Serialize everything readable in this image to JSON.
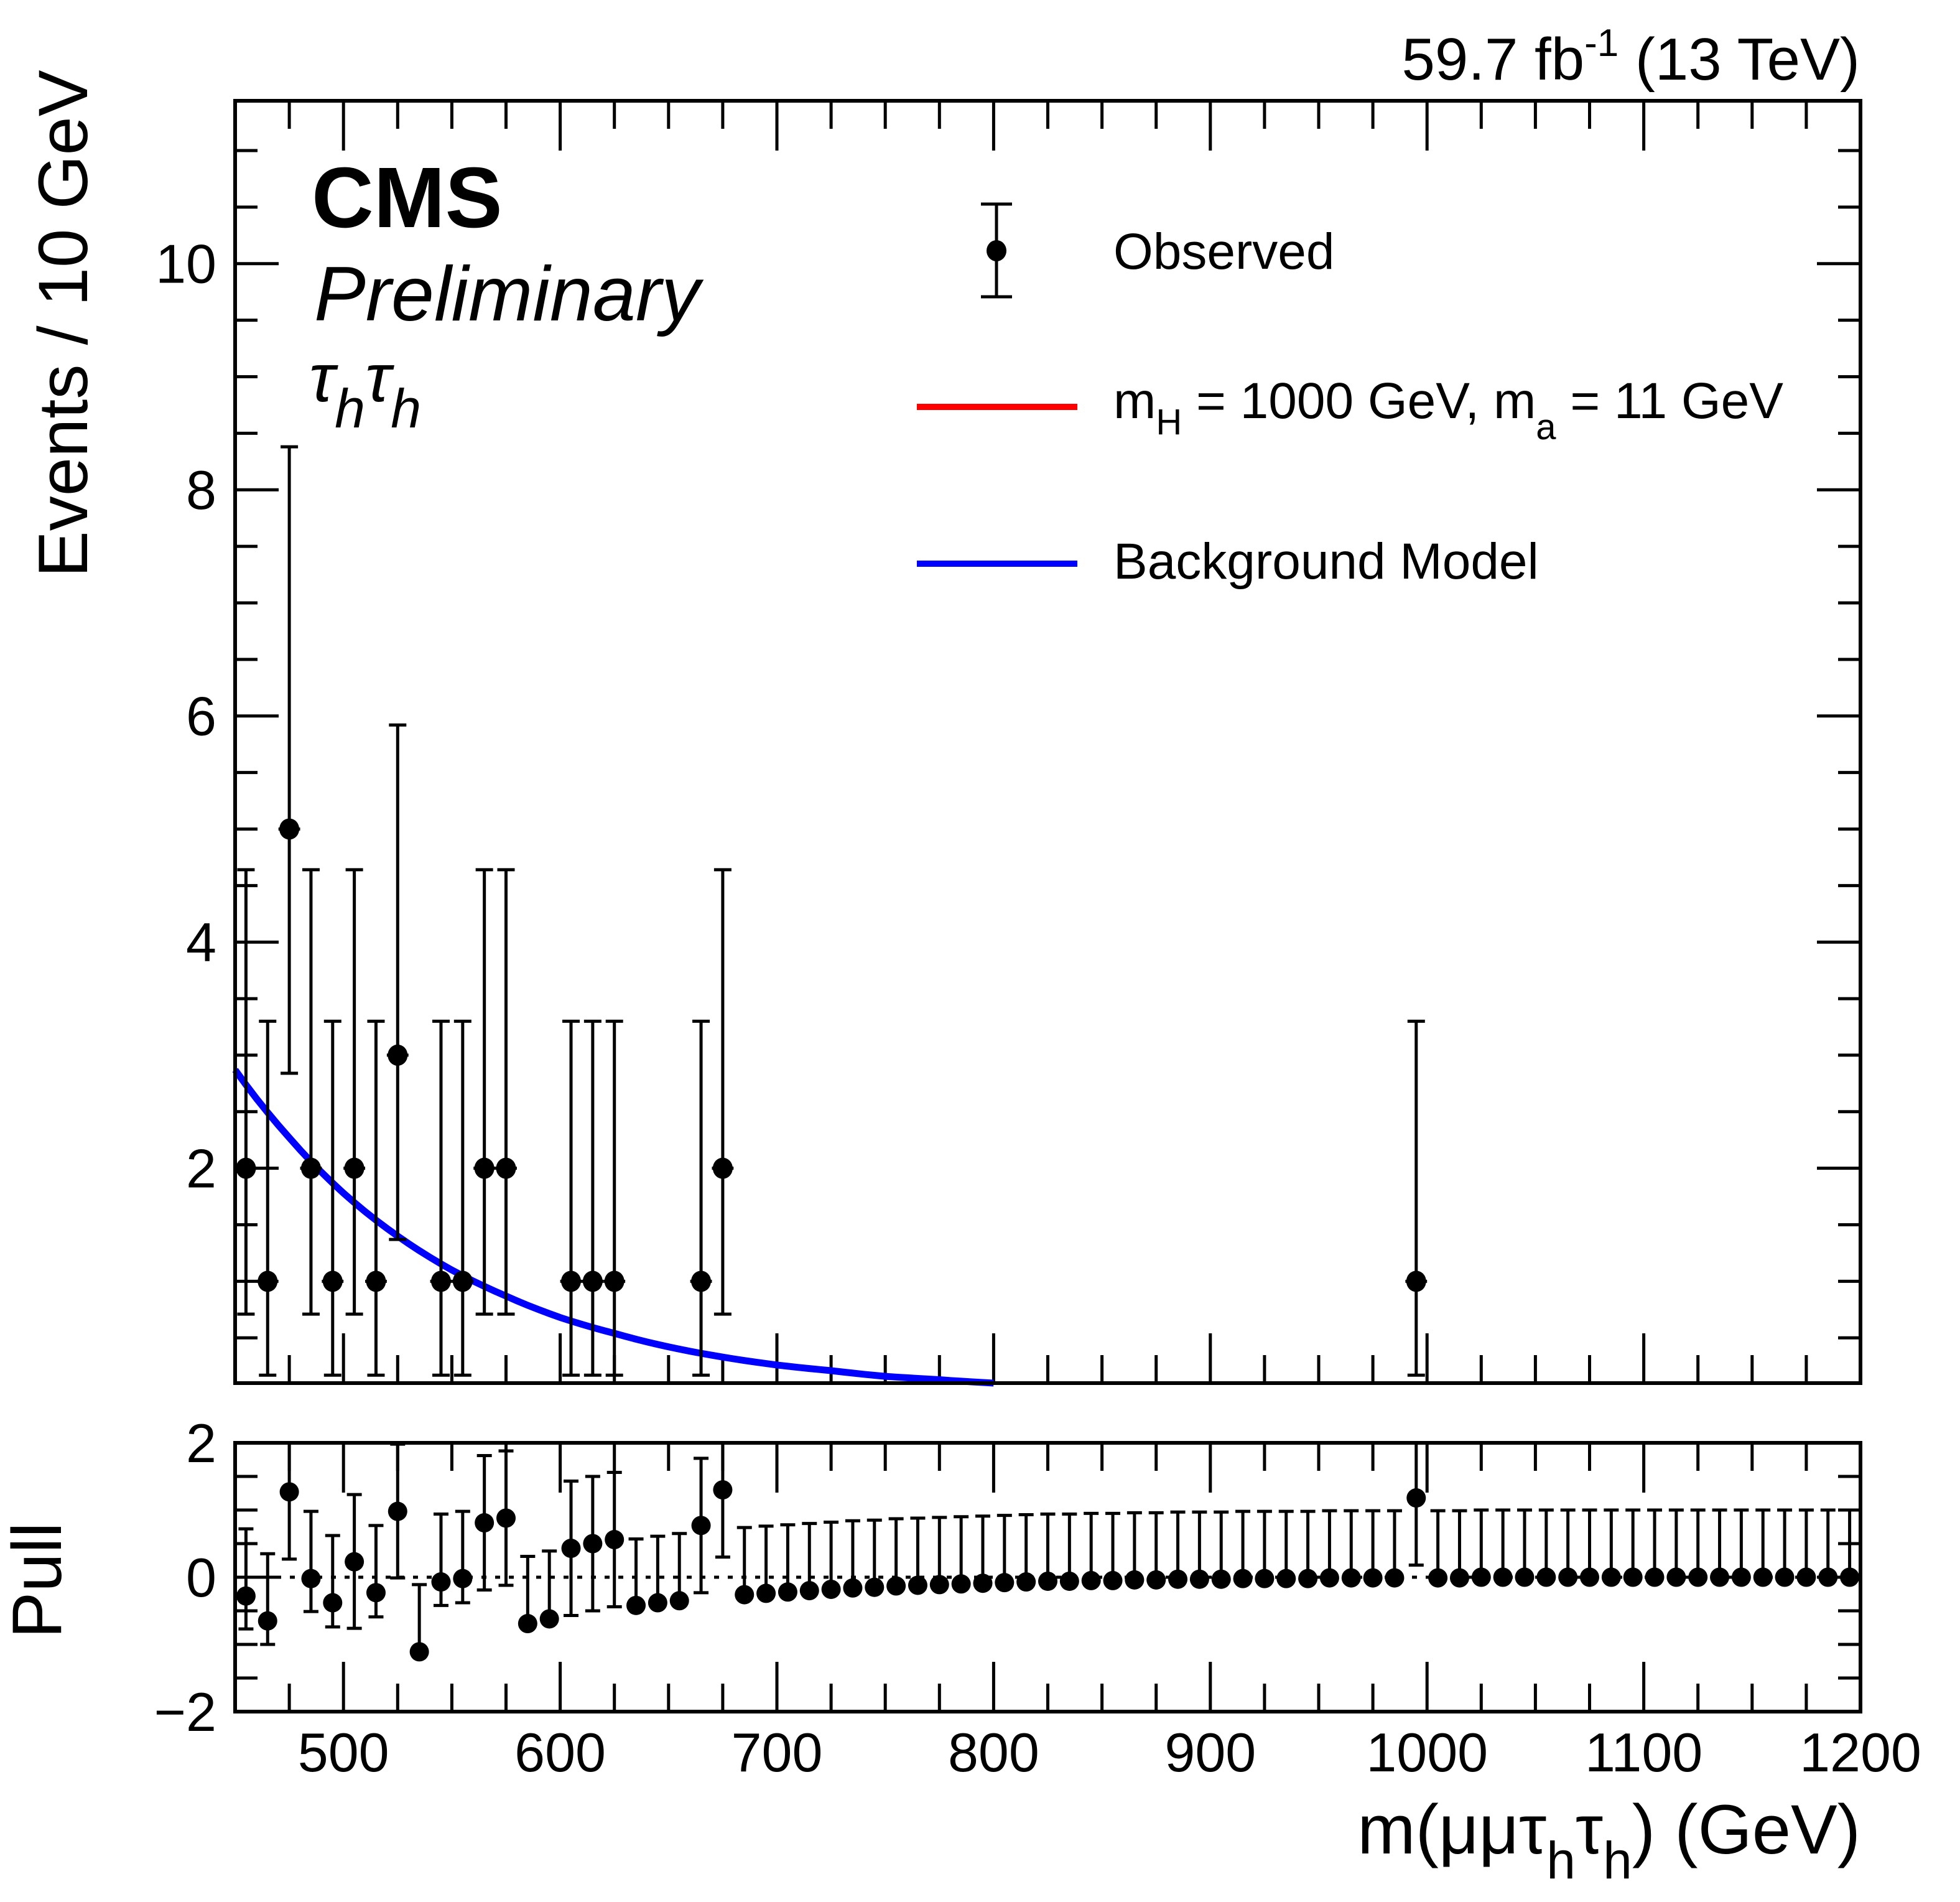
{
  "chart_data": [
    {
      "panel": "main",
      "type": "scatter",
      "title": "",
      "header_left": {
        "experiment": "CMS",
        "status": "Preliminary",
        "channel_base": "τ",
        "channel_sub": "h"
      },
      "header_right": {
        "lumi": "59.7 fb",
        "lumi_sup": "-1",
        "energy": " (13 TeV)"
      },
      "xlabel": "m(μμτ_hτ_h) (GeV)",
      "ylabel": "Events / 10 GeV",
      "xlim": [
        450,
        1200
      ],
      "ylim": [
        0.1,
        11.44
      ],
      "yticks": [
        2,
        4,
        6,
        8,
        10
      ],
      "ytick_labels": [
        "2",
        "4",
        "6",
        "8",
        "10"
      ],
      "grid": false,
      "legend_placement": "top-right",
      "legend": [
        {
          "label": "Observed",
          "kind": "marker"
        },
        {
          "label_main": "m",
          "sub1": "H",
          "mid": " = 1000 GeV, m",
          "sub2": "a",
          "end": " = 11 GeV",
          "kind": "line",
          "color": "#ff0000"
        },
        {
          "label": "Background Model",
          "kind": "line",
          "color": "#0000ff"
        }
      ],
      "series": [
        {
          "name": "Observed",
          "color": "#000000",
          "x": [
            455,
            465,
            475,
            485,
            495,
            505,
            515,
            525,
            545,
            555,
            565,
            575,
            605,
            615,
            625,
            665,
            675,
            995
          ],
          "y": [
            2,
            1,
            5,
            2,
            1,
            2,
            1,
            3,
            1,
            1,
            2,
            2,
            1,
            1,
            1,
            1,
            2,
            1
          ],
          "y_err_low": [
            1.29,
            0.83,
            2.16,
            1.29,
            0.83,
            1.29,
            0.83,
            1.63,
            0.83,
            0.83,
            1.29,
            1.29,
            0.83,
            0.83,
            0.83,
            0.83,
            1.29,
            0.83
          ],
          "y_err_high": [
            2.64,
            2.3,
            3.38,
            2.64,
            2.3,
            2.64,
            2.3,
            2.92,
            2.3,
            2.3,
            2.64,
            2.64,
            2.3,
            2.3,
            2.3,
            2.3,
            2.64,
            2.3
          ],
          "x_half_width": 5
        },
        {
          "name": "Background Model",
          "color": "#0000ff",
          "type": "line",
          "x": [
            450,
            475,
            500,
            525,
            550,
            575,
            600,
            625,
            650,
            675,
            700,
            725,
            750,
            775,
            800
          ],
          "y": [
            2.87,
            2.27,
            1.78,
            1.4,
            1.1,
            0.87,
            0.68,
            0.54,
            0.42,
            0.33,
            0.26,
            0.21,
            0.16,
            0.13,
            0.1
          ]
        },
        {
          "name": "Signal m_H = 1000 GeV, m_a = 11 GeV",
          "color": "#ff0000",
          "type": "line",
          "x": [],
          "y": []
        }
      ]
    },
    {
      "panel": "pull",
      "type": "scatter",
      "xlabel": "m(μμτ_hτ_h) (GeV)",
      "ylabel": "Pull",
      "xlim": [
        450,
        1200
      ],
      "ylim": [
        -2,
        2
      ],
      "yticks": [
        -2,
        0,
        2
      ],
      "ytick_labels": [
        "−2",
        "0",
        "2"
      ],
      "xticks": [
        500,
        600,
        700,
        800,
        900,
        1000,
        1100,
        1200
      ],
      "xtick_labels": [
        "500",
        "600",
        "700",
        "800",
        "900",
        "1000",
        "1100",
        "1200"
      ],
      "reference_line": 0,
      "series": [
        {
          "name": "Pull",
          "x": [
            455,
            465,
            475,
            485,
            495,
            505,
            515,
            525,
            535,
            545,
            555,
            565,
            575,
            585,
            595,
            605,
            615,
            625,
            635,
            645,
            655,
            665,
            675,
            685,
            695,
            705,
            715,
            725,
            735,
            745,
            755,
            765,
            775,
            785,
            795,
            805,
            815,
            825,
            835,
            845,
            855,
            865,
            875,
            885,
            895,
            905,
            915,
            925,
            935,
            945,
            955,
            965,
            975,
            985,
            995,
            1005,
            1015,
            1025,
            1035,
            1045,
            1055,
            1065,
            1075,
            1085,
            1095,
            1105,
            1115,
            1125,
            1135,
            1145,
            1155,
            1165,
            1175,
            1185,
            1195
          ],
          "y": [
            -0.28,
            -0.65,
            1.27,
            -0.02,
            -0.38,
            0.23,
            -0.23,
            0.98,
            -1.11,
            -0.07,
            -0.02,
            0.81,
            0.88,
            -0.69,
            -0.62,
            0.43,
            0.5,
            0.56,
            -0.42,
            -0.38,
            -0.35,
            0.77,
            1.3,
            -0.26,
            -0.24,
            -0.22,
            -0.2,
            -0.18,
            -0.16,
            -0.15,
            -0.13,
            -0.12,
            -0.11,
            -0.1,
            -0.09,
            -0.08,
            -0.07,
            -0.06,
            -0.06,
            -0.05,
            -0.05,
            -0.04,
            -0.04,
            -0.03,
            -0.03,
            -0.03,
            -0.02,
            -0.02,
            -0.02,
            -0.02,
            -0.01,
            -0.01,
            -0.01,
            -0.01,
            1.18,
            -0.01,
            -0.01,
            0,
            0,
            0,
            0,
            0,
            0,
            0,
            0,
            0,
            0,
            0,
            0,
            0,
            0,
            0,
            0,
            0,
            0
          ],
          "y_err_low": [
            0.49,
            0.35,
            1.0,
            0.49,
            0.36,
            0.99,
            0.36,
            0.99,
            0,
            0.35,
            0.36,
            1.0,
            1.0,
            0,
            0,
            1.0,
            1.0,
            1.0,
            0,
            0,
            0,
            1.0,
            1.0,
            0,
            0,
            0,
            0,
            0,
            0,
            0,
            0,
            0,
            0,
            0,
            0,
            0,
            0,
            0,
            0,
            0,
            0,
            0,
            0,
            0,
            0,
            0,
            0,
            0,
            0,
            0,
            0,
            0,
            0,
            0,
            1.0,
            0,
            0,
            0,
            0,
            0,
            0,
            0,
            0,
            0,
            0,
            0,
            0,
            0,
            0,
            0,
            0,
            0,
            0,
            0,
            0
          ],
          "y_err_high": [
            1.0,
            1.0,
            1.0,
            1.0,
            1.0,
            1.0,
            1.0,
            1.0,
            1.0,
            1.01,
            1.0,
            1.0,
            1.0,
            1.0,
            1.01,
            1.0,
            1.0,
            1.0,
            0.99,
            0.99,
            1.0,
            1.0,
            1.0,
            1.0,
            1.0,
            1.0,
            1.0,
            1.0,
            1.0,
            1.0,
            1.0,
            1.0,
            1.0,
            1.0,
            1.0,
            1.0,
            1.0,
            1.0,
            1.0,
            1.0,
            1.0,
            1.0,
            1.0,
            1.0,
            1.0,
            1.0,
            1.0,
            1.0,
            1.0,
            1.0,
            1.0,
            1.0,
            1.0,
            1.0,
            1.0,
            1.0,
            1.0,
            1.0,
            1.0,
            1.0,
            1.0,
            1.0,
            1.0,
            1.0,
            1.0,
            1.0,
            1.0,
            1.0,
            1.0,
            1.0,
            1.0,
            1.0,
            1.0,
            1.0,
            1.0
          ]
        }
      ]
    }
  ],
  "text": {
    "cms": "CMS",
    "preliminary": "Preliminary",
    "tau": "τ",
    "h": "h",
    "lumi_main": "59.7 fb",
    "lumi_sup": "-1",
    "lumi_energy": " (13 TeV)",
    "ylabel_main": "Events / 10 GeV",
    "ylabel_pull": "Pull",
    "xlabel_m": "m(μμτ",
    "xlabel_h": "h",
    "xlabel_tau": "τ",
    "xlabel_end": ") (GeV)",
    "legend_observed": "Observed",
    "legend_signal_m": "m",
    "legend_signal_H": "H",
    "legend_signal_mid": " = 1000 GeV, m",
    "legend_signal_a": "a",
    "legend_signal_end": " = 11 GeV",
    "legend_bkg": "Background Model"
  }
}
